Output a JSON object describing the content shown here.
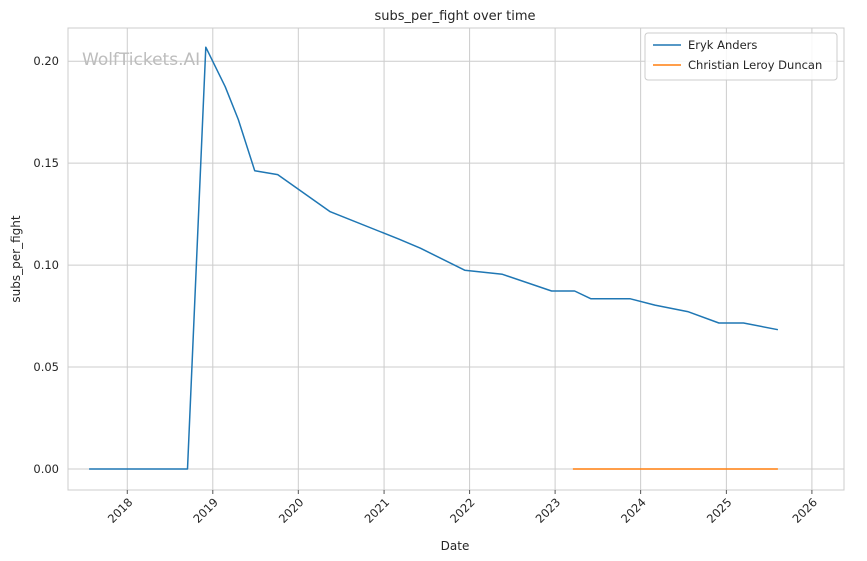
{
  "chart_data": {
    "type": "line",
    "title": "subs_per_fight over time",
    "xlabel": "Date",
    "ylabel": "subs_per_fight",
    "watermark": "WolfTickets.AI",
    "xlim": [
      "2017-04-23",
      "2026-05-18"
    ],
    "ylim": [
      -0.0103,
      0.2163
    ],
    "x_ticks": [
      "2018-01-01",
      "2019-01-01",
      "2020-01-01",
      "2021-01-01",
      "2022-01-01",
      "2023-01-01",
      "2024-01-01",
      "2025-01-01",
      "2026-01-01"
    ],
    "x_tick_labels": [
      "2018",
      "2019",
      "2020",
      "2021",
      "2022",
      "2023",
      "2024",
      "2025",
      "2026"
    ],
    "y_ticks": [
      0.0,
      0.05,
      0.1,
      0.15,
      0.2
    ],
    "y_tick_labels": [
      "0.00",
      "0.05",
      "0.10",
      "0.15",
      "0.20"
    ],
    "grid": true,
    "legend_position": "top-right",
    "series": [
      {
        "name": "Eryk Anders",
        "color": "#1f77b4",
        "points": [
          [
            "2017-07-22",
            0.0
          ],
          [
            "2018-09-15",
            0.0
          ],
          [
            "2018-12-02",
            0.2069
          ],
          [
            "2019-02-23",
            0.1875
          ],
          [
            "2019-04-20",
            0.1714
          ],
          [
            "2019-06-29",
            0.1463
          ],
          [
            "2019-10-05",
            0.1444
          ],
          [
            "2020-05-16",
            0.1262
          ],
          [
            "2021-03-06",
            0.1127
          ],
          [
            "2021-06-05",
            0.1083
          ],
          [
            "2021-12-11",
            0.0975
          ],
          [
            "2022-05-21",
            0.0955
          ],
          [
            "2022-12-17",
            0.0873
          ],
          [
            "2023-03-25",
            0.0873
          ],
          [
            "2023-06-03",
            0.0835
          ],
          [
            "2023-11-18",
            0.0835
          ],
          [
            "2024-03-02",
            0.0804
          ],
          [
            "2024-07-20",
            0.0772
          ],
          [
            "2024-11-30",
            0.0716
          ],
          [
            "2025-03-15",
            0.0716
          ],
          [
            "2025-08-09",
            0.0683
          ]
        ]
      },
      {
        "name": "Christian Leroy Duncan",
        "color": "#ff7f0e",
        "points": [
          [
            "2023-03-18",
            0.0
          ],
          [
            "2023-09-23",
            0.0
          ],
          [
            "2024-05-11",
            0.0
          ],
          [
            "2024-11-09",
            0.0
          ],
          [
            "2025-04-12",
            0.0
          ],
          [
            "2025-08-09",
            0.0
          ]
        ]
      }
    ]
  }
}
